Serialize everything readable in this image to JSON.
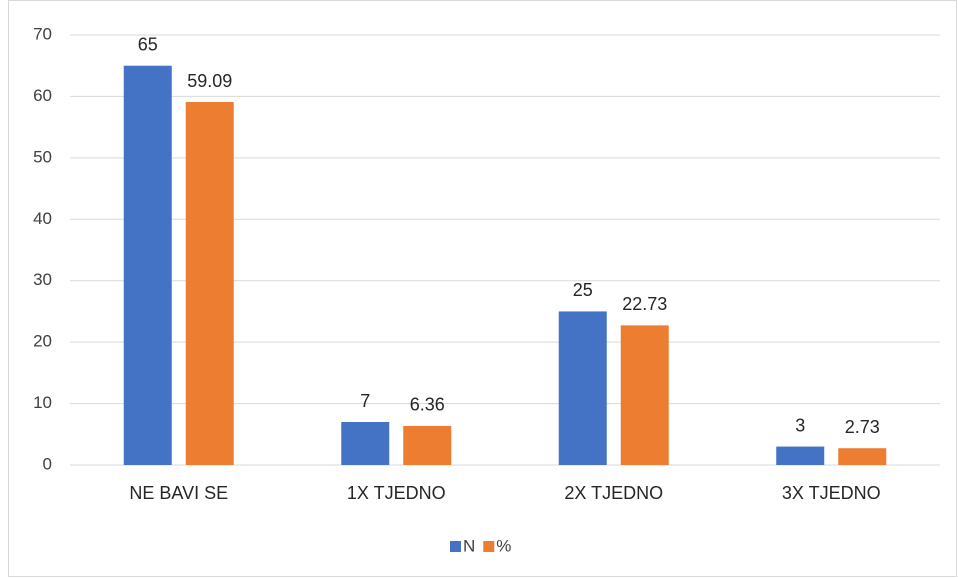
{
  "chart_data": {
    "type": "bar",
    "categories": [
      "NE BAVI SE",
      "1X TJEDNO",
      "2X TJEDNO",
      "3X TJEDNO"
    ],
    "series": [
      {
        "name": "N",
        "color": "#4472c4",
        "values": [
          65,
          7,
          25,
          3
        ]
      },
      {
        "name": "%",
        "color": "#ed7d31",
        "values": [
          59.09,
          6.36,
          22.73,
          2.73
        ]
      }
    ],
    "ylim": [
      0,
      70
    ],
    "yticks": [
      0,
      10,
      20,
      30,
      40,
      50,
      60,
      70
    ],
    "grid": true,
    "legend": "bottom"
  }
}
